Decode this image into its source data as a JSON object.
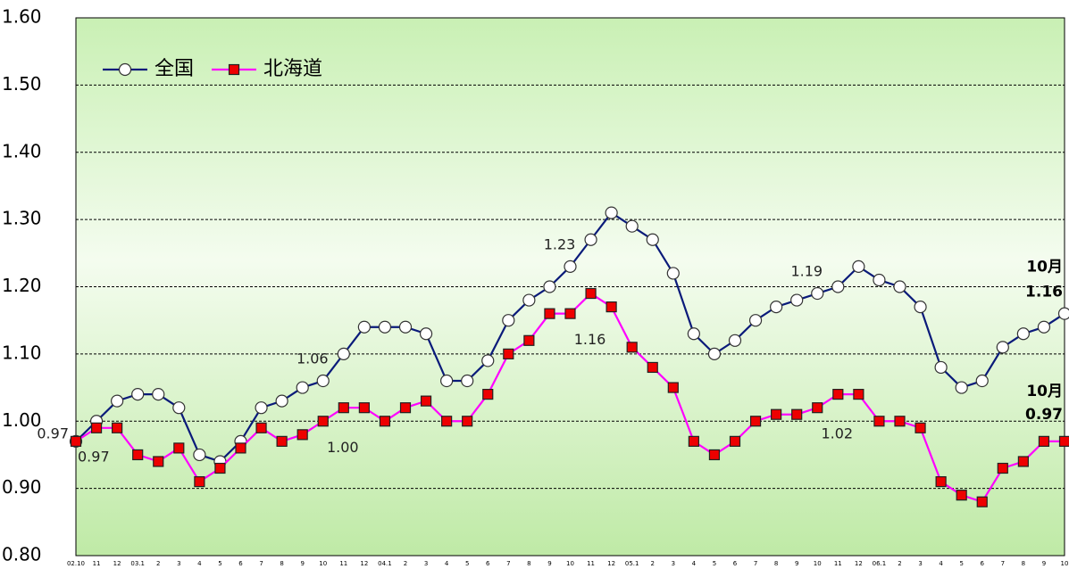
{
  "chart_data": {
    "type": "line",
    "categories": [
      "02.10",
      "11",
      "12",
      "03.1",
      "2",
      "3",
      "4",
      "5",
      "6",
      "7",
      "8",
      "9",
      "10",
      "11",
      "12",
      "04.1",
      "2",
      "3",
      "4",
      "5",
      "6",
      "7",
      "8",
      "9",
      "10",
      "11",
      "12",
      "05.1",
      "2",
      "3",
      "4",
      "5",
      "6",
      "7",
      "8",
      "9",
      "10",
      "11",
      "12",
      "06.1",
      "2",
      "3",
      "4",
      "5",
      "6",
      "7",
      "8",
      "9",
      "10"
    ],
    "series": [
      {
        "name": "全国",
        "color": "#0a1a7a",
        "marker": "circle",
        "marker_color": "#ffffff",
        "values": [
          0.97,
          1.0,
          1.03,
          1.04,
          1.04,
          1.02,
          0.95,
          0.94,
          0.97,
          1.02,
          1.03,
          1.05,
          1.06,
          1.1,
          1.14,
          1.14,
          1.14,
          1.13,
          1.06,
          1.06,
          1.09,
          1.15,
          1.18,
          1.2,
          1.23,
          1.27,
          1.31,
          1.29,
          1.27,
          1.22,
          1.13,
          1.1,
          1.12,
          1.15,
          1.17,
          1.18,
          1.19,
          1.2,
          1.23,
          1.21,
          1.2,
          1.17,
          1.08,
          1.05,
          1.06,
          1.11,
          1.13,
          1.14,
          1.16
        ],
        "value_labels": [
          "0.97",
          null,
          null,
          null,
          null,
          null,
          null,
          null,
          null,
          null,
          null,
          null,
          "1.06",
          null,
          null,
          null,
          null,
          null,
          null,
          null,
          null,
          null,
          null,
          null,
          "1.23",
          null,
          null,
          null,
          null,
          null,
          null,
          null,
          null,
          null,
          null,
          null,
          "1.19",
          null,
          null,
          null,
          null,
          null,
          null,
          null,
          null,
          null,
          null,
          null,
          "1.16"
        ]
      },
      {
        "name": "北海道",
        "color": "#ff00ff",
        "marker": "square",
        "marker_color": "#ee0000",
        "values": [
          0.97,
          0.99,
          0.99,
          0.95,
          0.94,
          0.96,
          0.91,
          0.93,
          0.96,
          0.99,
          0.97,
          0.98,
          1.0,
          1.02,
          1.02,
          1.0,
          1.02,
          1.03,
          1.0,
          1.0,
          1.04,
          1.1,
          1.12,
          1.16,
          1.16,
          1.19,
          1.17,
          1.11,
          1.08,
          1.05,
          0.97,
          0.95,
          0.97,
          1.0,
          1.01,
          1.01,
          1.02,
          1.04,
          1.04,
          1.0,
          1.0,
          0.99,
          0.91,
          0.89,
          0.88,
          0.93,
          0.94,
          0.97,
          0.97
        ],
        "value_labels": [
          "0.97",
          null,
          null,
          null,
          null,
          null,
          null,
          null,
          null,
          null,
          null,
          null,
          "1.00",
          null,
          null,
          null,
          null,
          null,
          null,
          null,
          null,
          null,
          null,
          null,
          "1.16",
          null,
          null,
          null,
          null,
          null,
          null,
          null,
          null,
          null,
          null,
          null,
          "1.02",
          null,
          null,
          null,
          null,
          null,
          null,
          null,
          null,
          null,
          null,
          null,
          "0.97"
        ]
      }
    ],
    "annotations": [
      "10月",
      "10月"
    ],
    "ylim": [
      0.8,
      1.6
    ],
    "yticks": [
      {
        "value": 0.8,
        "label": "0.80"
      },
      {
        "value": 0.9,
        "label": "0.90"
      },
      {
        "value": 1.0,
        "label": "1.00"
      },
      {
        "value": 1.1,
        "label": "1.10"
      },
      {
        "value": 1.2,
        "label": "1.20"
      },
      {
        "value": 1.3,
        "label": "1.30"
      },
      {
        "value": 1.4,
        "label": "1.40"
      },
      {
        "value": 1.5,
        "label": "1.50"
      },
      {
        "value": 1.6,
        "label": "1.60"
      }
    ],
    "grid": true,
    "legend": "upper left"
  }
}
